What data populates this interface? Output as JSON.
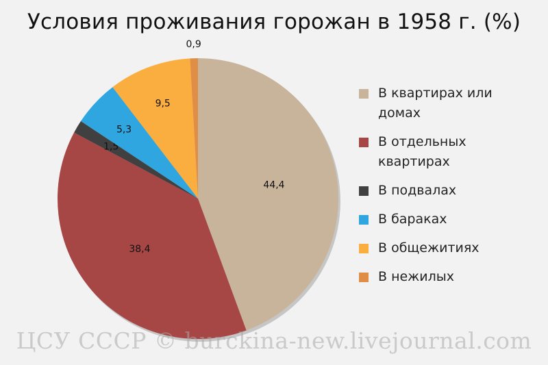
{
  "title": "Условия проживания горожан в 1958 г. (%)",
  "watermark": "ЦСУ СССР © burckina-new.livejournal.com",
  "chart_data": {
    "type": "pie",
    "title": "Условия проживания горожан в 1958 г. (%)",
    "legend_position": "right",
    "start_angle_deg": 0,
    "direction": "clockwise",
    "slices": [
      {
        "label": "В квартирах или домах",
        "value": 44.4,
        "value_label": "44,4",
        "color": "#c8b49b"
      },
      {
        "label": "В отдельных квартирах",
        "value": 38.4,
        "value_label": "38,4",
        "color": "#a64745"
      },
      {
        "label": "В подвалах",
        "value": 1.5,
        "value_label": "1,5",
        "color": "#404040"
      },
      {
        "label": "В бараках",
        "value": 5.3,
        "value_label": "5,3",
        "color": "#2fa6df"
      },
      {
        "label": "В общежитиях",
        "value": 9.5,
        "value_label": "9,5",
        "color": "#fbae40"
      },
      {
        "label": "В нежилых",
        "value": 0.9,
        "value_label": "0,9",
        "color": "#e08d46"
      }
    ]
  }
}
